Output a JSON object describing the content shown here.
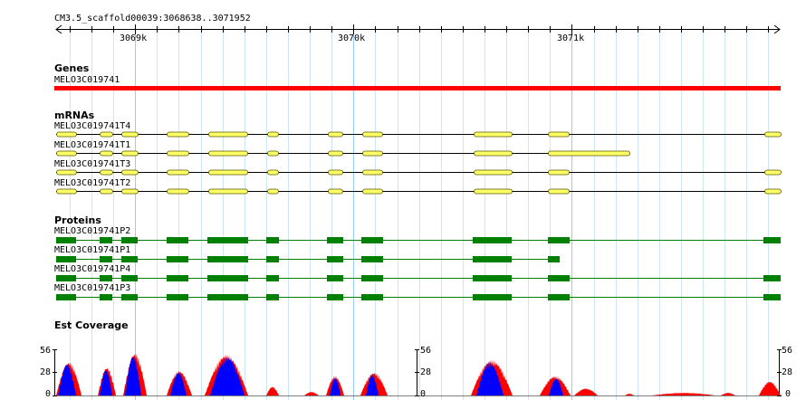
{
  "ruler": {
    "region": "CM3.5_scaffold00039:3068638..3071952",
    "start": 3068638,
    "end": 3071952,
    "major_ticks": [
      {
        "pos": 3069000,
        "label": "3069k"
      },
      {
        "pos": 3070000,
        "label": "3070k"
      },
      {
        "pos": 3071000,
        "label": "3071k"
      }
    ]
  },
  "genes": {
    "title": "Genes",
    "name": "MELO3C019741",
    "color": "#ff0000"
  },
  "mrnas": {
    "title": "mRNAs",
    "color": "#ffff66",
    "items": [
      {
        "name": "MELO3C019741T4"
      },
      {
        "name": "MELO3C019741T1"
      },
      {
        "name": "MELO3C019741T3"
      },
      {
        "name": "MELO3C019741T2"
      }
    ]
  },
  "proteins": {
    "title": "Proteins",
    "color": "#008000",
    "items": [
      {
        "name": "MELO3C019741P2"
      },
      {
        "name": "MELO3C019741P1"
      },
      {
        "name": "MELO3C019741P4"
      },
      {
        "name": "MELO3C019741P3"
      }
    ]
  },
  "coverage": {
    "title": "Est Coverage",
    "scale_max": "56",
    "scale_mid": "28",
    "scale_min": "0",
    "colors": {
      "forward": "#ff0000",
      "reverse": "#0000ff"
    }
  }
}
